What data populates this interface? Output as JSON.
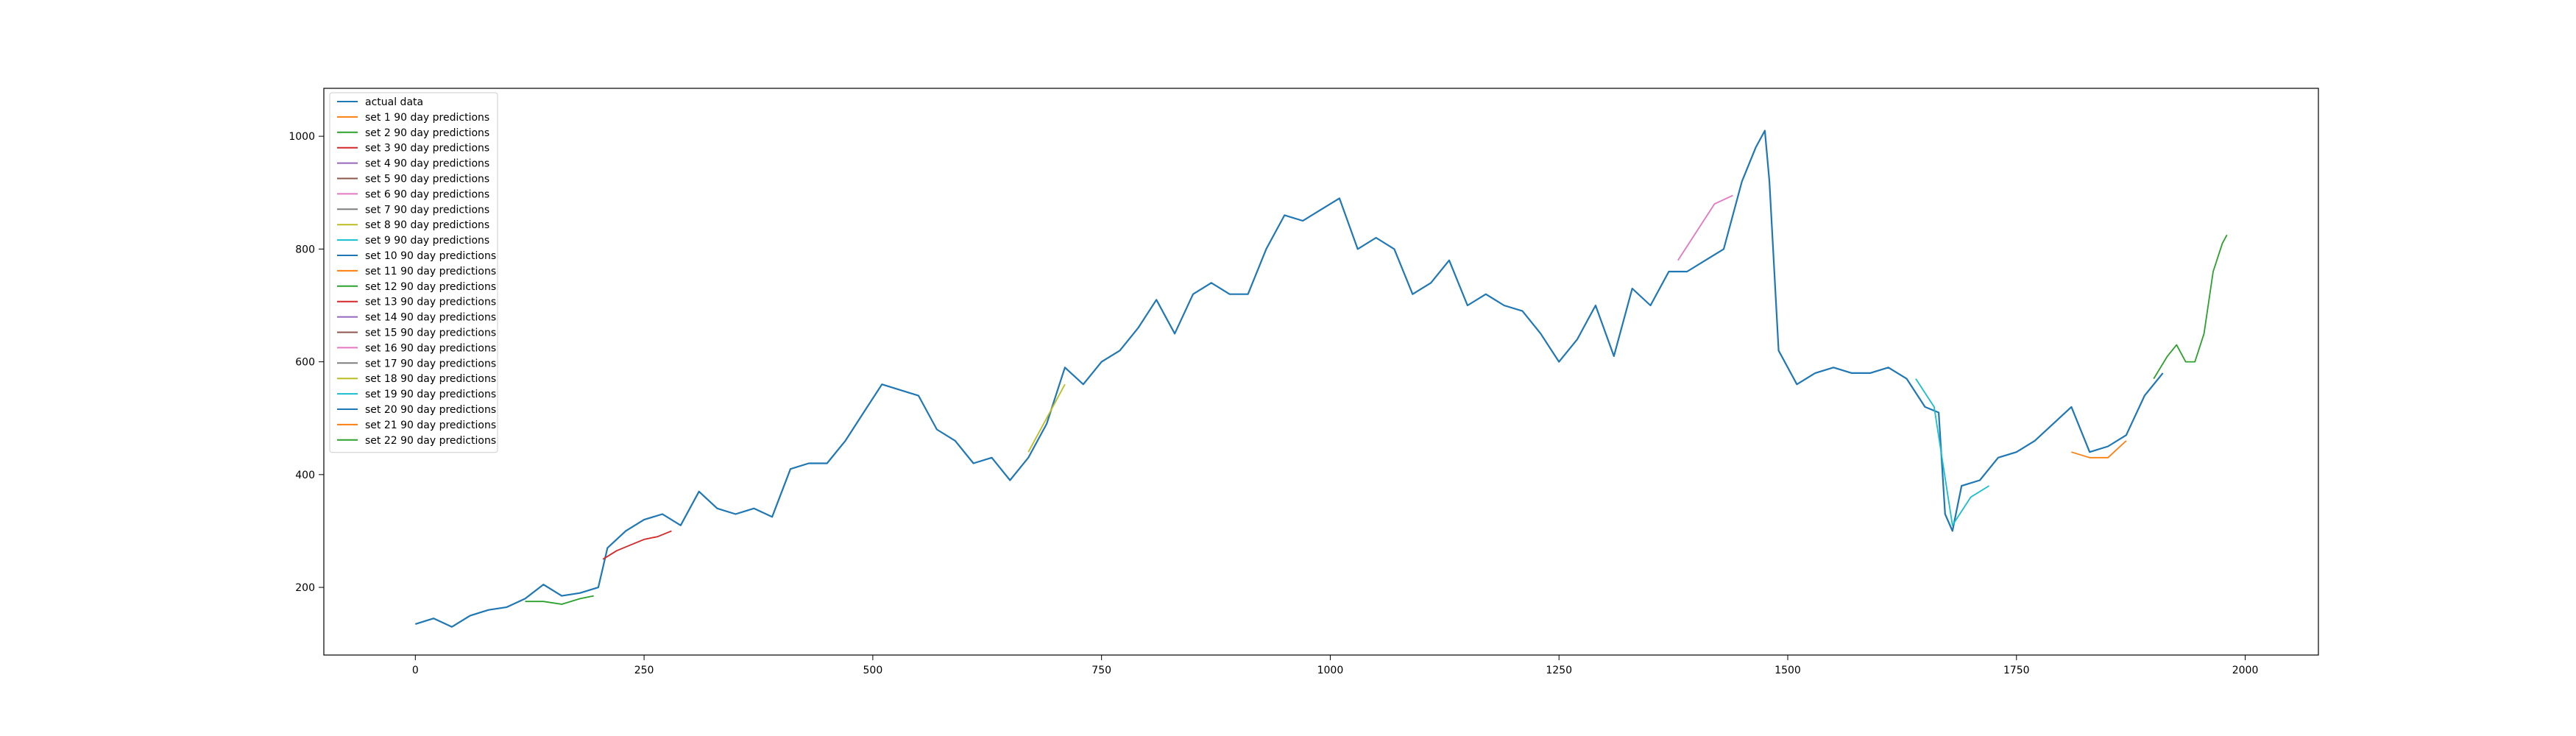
{
  "chart_data": {
    "type": "line",
    "title": "",
    "xlabel": "",
    "ylabel": "",
    "xlim": [
      -100,
      2080
    ],
    "ylim": [
      80,
      1085
    ],
    "xticks": [
      0,
      250,
      500,
      750,
      1000,
      1250,
      1500,
      1750,
      2000
    ],
    "yticks": [
      200,
      400,
      600,
      800,
      1000
    ],
    "grid": false,
    "legend_position": "upper-left",
    "series": [
      {
        "name": "actual data",
        "color": "#1f77b4",
        "x": [
          0,
          20,
          40,
          60,
          80,
          100,
          120,
          140,
          160,
          180,
          200,
          210,
          230,
          250,
          270,
          290,
          310,
          330,
          350,
          370,
          390,
          410,
          430,
          450,
          470,
          490,
          510,
          530,
          550,
          570,
          590,
          610,
          630,
          650,
          670,
          690,
          710,
          730,
          750,
          770,
          790,
          810,
          830,
          850,
          870,
          890,
          910,
          930,
          950,
          970,
          990,
          1010,
          1030,
          1050,
          1070,
          1090,
          1110,
          1130,
          1150,
          1170,
          1190,
          1210,
          1230,
          1250,
          1270,
          1290,
          1310,
          1330,
          1350,
          1370,
          1390,
          1410,
          1430,
          1450,
          1465,
          1475,
          1480,
          1490,
          1510,
          1530,
          1550,
          1570,
          1590,
          1610,
          1630,
          1650,
          1665,
          1672,
          1680,
          1690,
          1710,
          1730,
          1750,
          1770,
          1790,
          1810,
          1830,
          1850,
          1870,
          1890,
          1910
        ],
        "y": [
          135,
          145,
          130,
          150,
          160,
          165,
          180,
          205,
          185,
          190,
          200,
          270,
          300,
          320,
          330,
          310,
          370,
          340,
          330,
          340,
          325,
          410,
          420,
          420,
          460,
          510,
          560,
          550,
          540,
          480,
          460,
          420,
          430,
          390,
          430,
          490,
          590,
          560,
          600,
          620,
          660,
          710,
          650,
          720,
          740,
          720,
          720,
          800,
          860,
          850,
          870,
          890,
          800,
          820,
          800,
          720,
          740,
          780,
          700,
          720,
          700,
          690,
          650,
          600,
          640,
          700,
          610,
          730,
          700,
          760,
          760,
          780,
          800,
          920,
          980,
          1010,
          920,
          620,
          560,
          580,
          590,
          580,
          580,
          590,
          570,
          520,
          510,
          330,
          300,
          380,
          390,
          430,
          440,
          460,
          490,
          520,
          440,
          450,
          470,
          540,
          580
        ]
      },
      {
        "name": "set 1 90 day predictions",
        "color": "#ff7f0e",
        "x": [],
        "y": []
      },
      {
        "name": "set 2 90 day predictions",
        "color": "#2ca02c",
        "x": [
          120,
          140,
          160,
          180,
          195
        ],
        "y": [
          175,
          175,
          170,
          180,
          185
        ]
      },
      {
        "name": "set 3 90 day predictions",
        "color": "#d62728",
        "x": [
          205,
          220,
          235,
          250,
          265,
          280
        ],
        "y": [
          250,
          265,
          275,
          285,
          290,
          300
        ]
      },
      {
        "name": "set 4 90 day predictions",
        "color": "#9467bd",
        "x": [],
        "y": []
      },
      {
        "name": "set 5 90 day predictions",
        "color": "#8c564b",
        "x": [],
        "y": []
      },
      {
        "name": "set 6 90 day predictions",
        "color": "#e377c2",
        "x": [
          1380,
          1400,
          1420,
          1440
        ],
        "y": [
          780,
          830,
          880,
          895
        ]
      },
      {
        "name": "set 7 90 day predictions",
        "color": "#7f7f7f",
        "x": [],
        "y": []
      },
      {
        "name": "set 8 90 day predictions",
        "color": "#bcbd22",
        "x": [
          670,
          690,
          710
        ],
        "y": [
          440,
          500,
          560
        ]
      },
      {
        "name": "set 9 90 day predictions",
        "color": "#17becf",
        "x": [
          1640,
          1660,
          1680,
          1700,
          1720
        ],
        "y": [
          570,
          520,
          310,
          360,
          380
        ]
      },
      {
        "name": "set 10 90 day predictions",
        "color": "#1f77b4",
        "x": [],
        "y": []
      },
      {
        "name": "set 11 90 day predictions",
        "color": "#ff7f0e",
        "x": [],
        "y": []
      },
      {
        "name": "set 12 90 day predictions",
        "color": "#2ca02c",
        "x": [],
        "y": []
      },
      {
        "name": "set 13 90 day predictions",
        "color": "#d62728",
        "x": [],
        "y": []
      },
      {
        "name": "set 14 90 day predictions",
        "color": "#9467bd",
        "x": [],
        "y": []
      },
      {
        "name": "set 15 90 day predictions",
        "color": "#8c564b",
        "x": [],
        "y": []
      },
      {
        "name": "set 16 90 day predictions",
        "color": "#e377c2",
        "x": [],
        "y": []
      },
      {
        "name": "set 17 90 day predictions",
        "color": "#7f7f7f",
        "x": [],
        "y": []
      },
      {
        "name": "set 18 90 day predictions",
        "color": "#bcbd22",
        "x": [],
        "y": []
      },
      {
        "name": "set 19 90 day predictions",
        "color": "#17becf",
        "x": [],
        "y": []
      },
      {
        "name": "set 20 90 day predictions",
        "color": "#1f77b4",
        "x": [],
        "y": []
      },
      {
        "name": "set 21 90 day predictions",
        "color": "#ff7f0e",
        "x": [
          1810,
          1830,
          1850,
          1870
        ],
        "y": [
          440,
          430,
          430,
          460
        ]
      },
      {
        "name": "set 22 90 day predictions",
        "color": "#2ca02c",
        "x": [
          1900,
          1915,
          1925,
          1935,
          1945,
          1955,
          1965,
          1975,
          1980
        ],
        "y": [
          570,
          610,
          630,
          600,
          600,
          650,
          760,
          810,
          825
        ]
      }
    ]
  }
}
